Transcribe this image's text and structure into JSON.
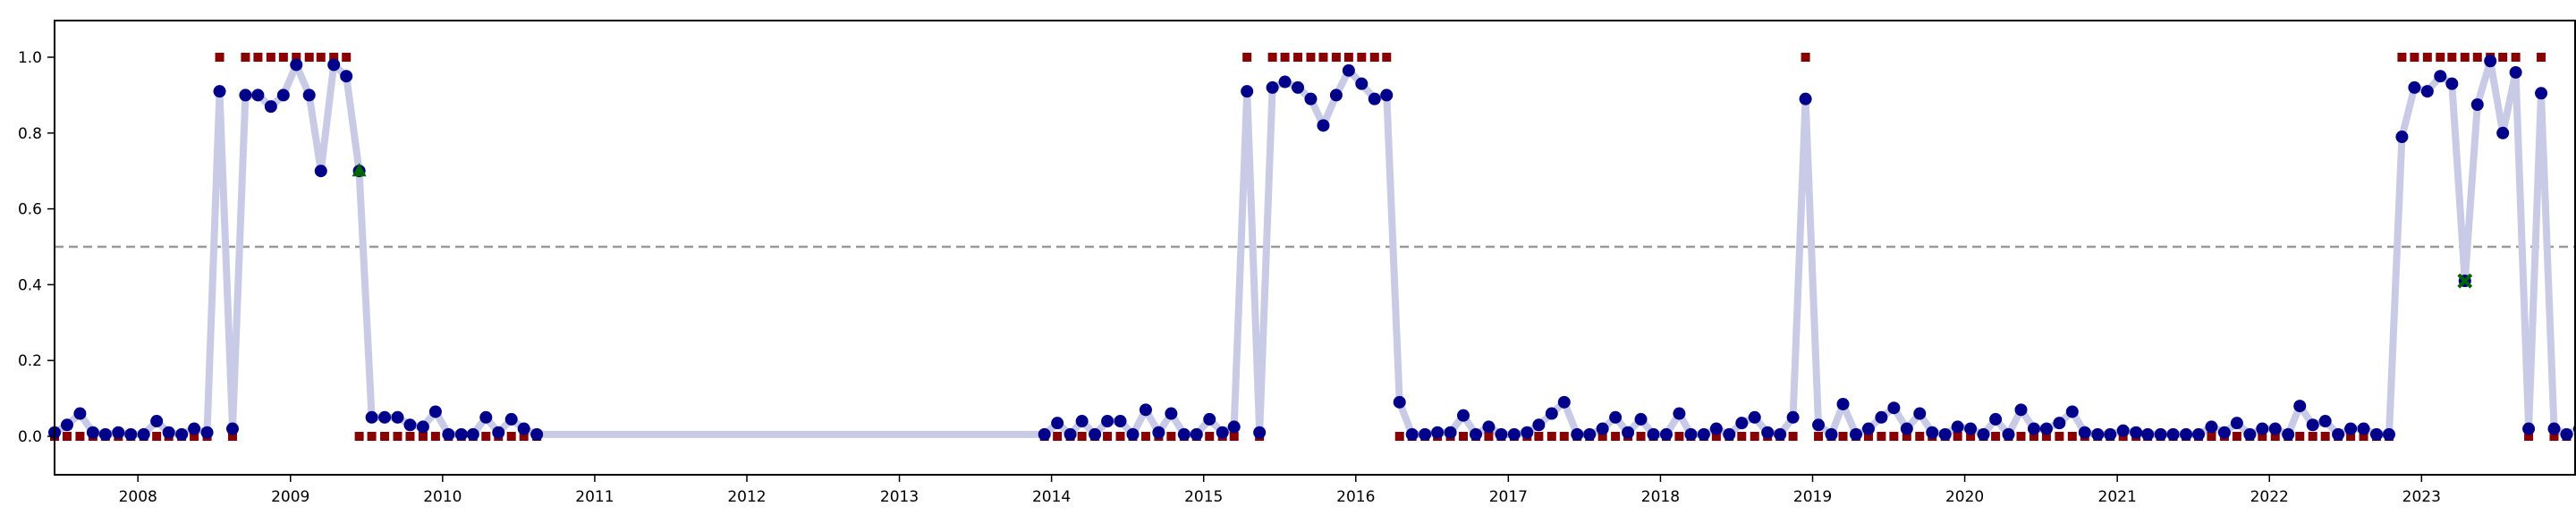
{
  "chart_data": {
    "type": "scatter",
    "title": "",
    "xlabel": "",
    "ylabel": "",
    "xlim": [
      "2007-06-15",
      "2023-12-31"
    ],
    "ylim": [
      -0.1,
      1.1
    ],
    "x_ticks": [
      "2008",
      "2009",
      "2010",
      "2011",
      "2012",
      "2013",
      "2014",
      "2015",
      "2016",
      "2017",
      "2018",
      "2019",
      "2020",
      "2021",
      "2022",
      "2023"
    ],
    "y_ticks": [
      "0.0",
      "0.2",
      "0.4",
      "0.6",
      "0.8",
      "1.0"
    ],
    "threshold": 0.5,
    "grid": false,
    "legend": "none",
    "colors": {
      "line": "#c8cae6",
      "probability_marker": "#00008b",
      "label_marker": "#8b0000",
      "annotation_marker": "#006400",
      "threshold_line": "#999999"
    },
    "segments": [
      {
        "x": [
          "2007-06-15",
          "2007-07-15",
          "2007-08-15",
          "2007-09-15",
          "2007-10-15",
          "2007-11-15",
          "2007-12-15",
          "2008-01-15",
          "2008-02-15",
          "2008-03-15",
          "2008-04-15",
          "2008-05-15",
          "2008-06-15",
          "2008-07-15",
          "2008-08-15",
          "2008-09-15",
          "2008-10-15",
          "2008-11-15",
          "2008-12-15",
          "2009-01-15",
          "2009-02-15",
          "2009-03-15",
          "2009-04-15",
          "2009-05-15",
          "2009-06-15",
          "2009-07-15",
          "2009-08-15",
          "2009-09-15",
          "2009-10-15",
          "2009-11-15",
          "2009-12-15",
          "2010-01-15",
          "2010-02-15",
          "2010-03-15",
          "2010-04-15",
          "2010-05-15",
          "2010-06-15",
          "2010-07-15",
          "2010-08-15"
        ],
        "probability": [
          0.01,
          0.03,
          0.06,
          0.01,
          0.005,
          0.01,
          0.005,
          0.005,
          0.04,
          0.01,
          0.005,
          0.02,
          0.01,
          0.91,
          0.02,
          0.9,
          0.9,
          0.87,
          0.9,
          0.98,
          0.9,
          0.7,
          0.98,
          0.95,
          0.7,
          0.05,
          0.05,
          0.05,
          0.03,
          0.025,
          0.065,
          0.005,
          0.005,
          0.005,
          0.05,
          0.01,
          0.045,
          0.02,
          0.005
        ],
        "label": [
          0,
          0,
          0,
          0,
          0,
          0,
          0,
          0,
          0,
          0,
          0,
          0,
          0,
          1,
          0,
          1,
          1,
          1,
          1,
          1,
          1,
          1,
          1,
          1,
          0,
          0,
          0,
          0,
          0,
          0,
          0,
          0,
          0,
          0,
          0,
          0,
          0,
          0,
          0
        ]
      },
      {
        "x": [
          "2013-12-15",
          "2014-01-15",
          "2014-02-15",
          "2014-03-15",
          "2014-04-15",
          "2014-05-15",
          "2014-06-15",
          "2014-07-15",
          "2014-08-15",
          "2014-09-15",
          "2014-10-15",
          "2014-11-15",
          "2014-12-15",
          "2015-01-15",
          "2015-02-15",
          "2015-03-15",
          "2015-04-15",
          "2015-05-15",
          "2015-06-15",
          "2015-07-15",
          "2015-08-15",
          "2015-09-15",
          "2015-10-15",
          "2015-11-15",
          "2015-12-15",
          "2016-01-15",
          "2016-02-15",
          "2016-03-15",
          "2016-04-15",
          "2016-05-15",
          "2016-06-15",
          "2016-07-15",
          "2016-08-15",
          "2016-09-15",
          "2016-10-15",
          "2016-11-15",
          "2016-12-15",
          "2017-01-15",
          "2017-02-15",
          "2017-03-15",
          "2017-04-15",
          "2017-05-15",
          "2017-06-15",
          "2017-07-15",
          "2017-08-15",
          "2017-09-15",
          "2017-10-15",
          "2017-11-15",
          "2017-12-15",
          "2018-01-15",
          "2018-02-15",
          "2018-03-15",
          "2018-04-15",
          "2018-05-15",
          "2018-06-15",
          "2018-07-15",
          "2018-08-15",
          "2018-09-15",
          "2018-10-15",
          "2018-11-15",
          "2018-12-15",
          "2019-01-15",
          "2019-02-15",
          "2019-03-15",
          "2019-04-15",
          "2019-05-15",
          "2019-06-15",
          "2019-07-15",
          "2019-08-15",
          "2019-09-15",
          "2019-10-15",
          "2019-11-15",
          "2019-12-15",
          "2020-01-15",
          "2020-02-15",
          "2020-03-15",
          "2020-04-15",
          "2020-05-15",
          "2020-06-15",
          "2020-07-15",
          "2020-08-15",
          "2020-09-15",
          "2020-10-15",
          "2020-11-15",
          "2020-12-15",
          "2021-01-15",
          "2021-02-15",
          "2021-03-15",
          "2021-04-15",
          "2021-05-15",
          "2021-06-15",
          "2021-07-15",
          "2021-08-15",
          "2021-09-15",
          "2021-10-15",
          "2021-11-15",
          "2021-12-15",
          "2022-01-15",
          "2022-02-15",
          "2022-03-15",
          "2022-04-15",
          "2022-05-15",
          "2022-06-15",
          "2022-07-15",
          "2022-08-15",
          "2022-09-15",
          "2022-10-15",
          "2022-11-15",
          "2022-12-15",
          "2023-01-15",
          "2023-02-15",
          "2023-03-15",
          "2023-04-15",
          "2023-05-15",
          "2023-06-15",
          "2023-07-15",
          "2023-08-15",
          "2023-09-15",
          "2023-10-15",
          "2023-11-15",
          "2023-12-15",
          "2024-01-15"
        ],
        "probability": [
          0.005,
          0.035,
          0.005,
          0.04,
          0.005,
          0.04,
          0.04,
          0.005,
          0.07,
          0.01,
          0.06,
          0.005,
          0.005,
          0.045,
          0.01,
          0.025,
          0.91,
          0.01,
          0.92,
          0.935,
          0.92,
          0.89,
          0.82,
          0.9,
          0.965,
          0.93,
          0.89,
          0.9,
          0.09,
          0.005,
          0.005,
          0.01,
          0.01,
          0.055,
          0.005,
          0.025,
          0.005,
          0.005,
          0.01,
          0.03,
          0.06,
          0.09,
          0.005,
          0.005,
          0.02,
          0.05,
          0.01,
          0.045,
          0.005,
          0.005,
          0.06,
          0.005,
          0.005,
          0.02,
          0.005,
          0.035,
          0.05,
          0.01,
          0.005,
          0.05,
          0.89,
          0.03,
          0.005,
          0.085,
          0.005,
          0.02,
          0.05,
          0.075,
          0.02,
          0.06,
          0.01,
          0.005,
          0.025,
          0.02,
          0.005,
          0.045,
          0.005,
          0.07,
          0.02,
          0.02,
          0.035,
          0.065,
          0.01,
          0.005,
          0.005,
          0.015,
          0.01,
          0.005,
          0.005,
          0.005,
          0.005,
          0.005,
          0.025,
          0.01,
          0.035,
          0.005,
          0.02,
          0.02,
          0.005,
          0.08,
          0.03,
          0.04,
          0.005,
          0.02,
          0.02,
          0.005,
          0.005,
          0.79,
          0.92,
          0.91,
          0.95,
          0.93,
          0.41,
          0.875,
          0.99,
          0.8,
          0.96,
          0.02,
          0.905,
          0.02,
          0.005,
          0.02
        ],
        "label": [
          0,
          0,
          0,
          0,
          0,
          0,
          0,
          0,
          0,
          0,
          0,
          0,
          0,
          0,
          0,
          0,
          1,
          0,
          1,
          1,
          1,
          1,
          1,
          1,
          1,
          1,
          1,
          1,
          0,
          0,
          0,
          0,
          0,
          0,
          0,
          0,
          0,
          0,
          0,
          0,
          0,
          0,
          0,
          0,
          0,
          0,
          0,
          0,
          0,
          0,
          0,
          0,
          0,
          0,
          0,
          0,
          0,
          0,
          0,
          0,
          1,
          0,
          0,
          0,
          0,
          0,
          0,
          0,
          0,
          0,
          0,
          0,
          0,
          0,
          0,
          0,
          0,
          0,
          0,
          0,
          0,
          0,
          0,
          0,
          0,
          0,
          0,
          0,
          0,
          0,
          0,
          0,
          0,
          0,
          0,
          0,
          0,
          0,
          0,
          0,
          0,
          0,
          0,
          0,
          0,
          0,
          0,
          1,
          1,
          1,
          1,
          1,
          1,
          1,
          1,
          1,
          1,
          0,
          1,
          0,
          0,
          0
        ]
      }
    ],
    "annotations": [
      {
        "type": "triangle",
        "x": "2009-06-15",
        "y": 0.7
      },
      {
        "type": "cross",
        "x": "2023-04-15",
        "y": 0.41
      }
    ]
  }
}
